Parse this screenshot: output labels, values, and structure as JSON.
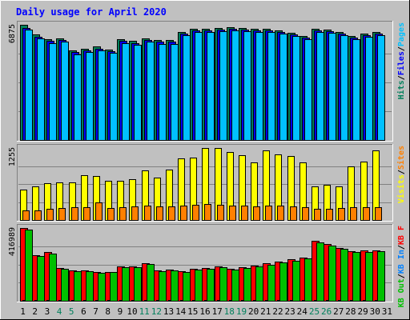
{
  "chart_data": {
    "title": "Daily usage for April 2020",
    "type": "bar",
    "days": [
      "1",
      "2",
      "3",
      "4",
      "5",
      "6",
      "7",
      "8",
      "9",
      "10",
      "11",
      "12",
      "13",
      "14",
      "15",
      "16",
      "17",
      "18",
      "19",
      "20",
      "21",
      "22",
      "23",
      "24",
      "25",
      "26",
      "27",
      "28",
      "29",
      "30",
      "31"
    ],
    "weekend_days": [
      "4",
      "5",
      "11",
      "12",
      "18",
      "19",
      "25",
      "26"
    ],
    "colors": {
      "hits": "#00805c",
      "files": "#0000ff",
      "pages": "#00c0ff",
      "visits": "#ffff00",
      "sites": "#ff8000",
      "kb_f": "#ff0000",
      "kb_in": "#0080ff",
      "kb_out": "#00c000",
      "title": "#0000ff",
      "weekend": "#00805c",
      "weekday": "#000000"
    },
    "panels": [
      {
        "id": "requests",
        "ymax_label": "6875",
        "ymax": 6875,
        "legend": [
          {
            "label": "Hits",
            "color": "#00805c"
          },
          {
            "label": "/",
            "color": "#000000"
          },
          {
            "label": "Files",
            "color": "#0000ff"
          },
          {
            "label": "/",
            "color": "#000000"
          },
          {
            "label": "Pages",
            "color": "#00c0ff"
          }
        ],
        "series": [
          {
            "name": "Hits",
            "color": "#00805c",
            "values": [
              6875,
              6300,
              6000,
              6050,
              5350,
              5450,
              5600,
              5400,
              6000,
              5900,
              6050,
              5950,
              5950,
              6450,
              6650,
              6650,
              6700,
              6750,
              6700,
              6650,
              6650,
              6550,
              6400,
              6200,
              6650,
              6600,
              6450,
              6200,
              6350,
              6450,
              null
            ]
          },
          {
            "name": "Files",
            "color": "#0000ff",
            "values": [
              6700,
              6150,
              5900,
              5950,
              5250,
              5350,
              5450,
              5300,
              5900,
              5800,
              5950,
              5850,
              5850,
              6350,
              6550,
              6550,
              6600,
              6650,
              6600,
              6550,
              6550,
              6450,
              6300,
              6100,
              6550,
              6500,
              6350,
              6100,
              6250,
              6350,
              null
            ]
          },
          {
            "name": "Pages",
            "color": "#00c0ff",
            "values": [
              6600,
              6050,
              5800,
              5850,
              5100,
              5250,
              5350,
              5200,
              5800,
              5700,
              5850,
              5750,
              5750,
              6250,
              6450,
              6450,
              6500,
              6550,
              6500,
              6450,
              6450,
              6350,
              6200,
              6000,
              6450,
              6400,
              6250,
              6000,
              6150,
              6250,
              null
            ]
          }
        ]
      },
      {
        "id": "visits",
        "ymax_label": "1255",
        "ymax": 1255,
        "legend": [
          {
            "label": "Visits",
            "color": "#ffff00"
          },
          {
            "label": "/",
            "color": "#000000"
          },
          {
            "label": "Sites",
            "color": "#ff8000"
          }
        ],
        "series": [
          {
            "name": "Visits",
            "color": "#ffff00",
            "values": [
              530,
              590,
              640,
              650,
              650,
              780,
              760,
              690,
              680,
              710,
              860,
              740,
              880,
              1080,
              1090,
              1255,
              1250,
              1190,
              1130,
              1010,
              1220,
              1140,
              1120,
              1000,
              590,
              610,
              590,
              940,
              1020,
              1220,
              null
            ]
          },
          {
            "name": "Sites",
            "color": "#ff8000",
            "values": [
              170,
              165,
              190,
              210,
              220,
              230,
              310,
              210,
              230,
              235,
              250,
              235,
              235,
              245,
              260,
              275,
              270,
              255,
              245,
              235,
              250,
              245,
              235,
              225,
              190,
              200,
              205,
              225,
              225,
              230,
              null
            ]
          }
        ]
      },
      {
        "id": "volume",
        "ymax_label": "416989",
        "ymax": 416989,
        "legend": [
          {
            "label": "KB Out",
            "color": "#00c000"
          },
          {
            "label": "/",
            "color": "#000000"
          },
          {
            "label": "KB In",
            "color": "#0080ff"
          },
          {
            "label": "/",
            "color": "#000000"
          },
          {
            "label": "KB F",
            "color": "#ff0000"
          }
        ],
        "series": [
          {
            "name": "KB F",
            "color": "#ff0000",
            "values": [
              416989,
              261000,
              278000,
              188000,
              174000,
              176000,
              164000,
              167000,
              197000,
              199000,
              217000,
              172000,
              180000,
              170000,
              182000,
              188000,
              198000,
              184000,
              194000,
              200000,
              214000,
              224000,
              237000,
              248000,
              343000,
              325000,
              303000,
              286000,
              287000,
              290000,
              null
            ]
          },
          {
            "name": "KB In",
            "color": "#0080ff",
            "values": [
              3000,
              2800,
              2900,
              2500,
              2400,
              2400,
              2300,
              2300,
              2600,
              2500,
              2600,
              2400,
              2400,
              2400,
              2500,
              2500,
              2600,
              2400,
              2500,
              2500,
              2600,
              2600,
              2700,
              2800,
              3000,
              2900,
              2800,
              2700,
              2700,
              2800,
              null
            ]
          },
          {
            "name": "KB Out",
            "color": "#00c000",
            "values": [
              410000,
              255000,
              272000,
              183000,
              170000,
              171000,
              159000,
              163000,
              192000,
              194000,
              212000,
              168000,
              175000,
              166000,
              177000,
              183000,
              193000,
              180000,
              189000,
              195000,
              208000,
              218000,
              230000,
              242000,
              335000,
              318000,
              296000,
              280000,
              281000,
              284000,
              null
            ]
          }
        ]
      }
    ]
  }
}
